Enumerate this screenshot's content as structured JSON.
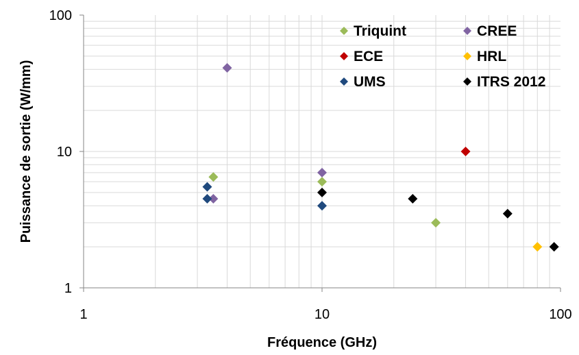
{
  "chart_data": {
    "type": "scatter",
    "title": "",
    "xlabel": "Fréquence (GHz)",
    "ylabel": "Puissance de sortie (W/mm)",
    "xscale": "log",
    "yscale": "log",
    "xlim": [
      1,
      100
    ],
    "ylim": [
      1,
      100
    ],
    "x_ticks": [
      "1",
      "10",
      "100"
    ],
    "y_ticks": [
      "1",
      "10",
      "100"
    ],
    "grid": true,
    "legend_position": "top-right",
    "series": [
      {
        "name": "Triquint",
        "color": "#9BBB59",
        "points": [
          {
            "x": 3.5,
            "y": 6.5
          },
          {
            "x": 10,
            "y": 6
          },
          {
            "x": 30,
            "y": 3
          }
        ]
      },
      {
        "name": "CREE",
        "color": "#8064A2",
        "points": [
          {
            "x": 4,
            "y": 41
          },
          {
            "x": 3.5,
            "y": 4.5
          },
          {
            "x": 10,
            "y": 7
          }
        ]
      },
      {
        "name": "ECE",
        "color": "#C00000",
        "points": [
          {
            "x": 40,
            "y": 10
          }
        ]
      },
      {
        "name": "HRL",
        "color": "#FFC000",
        "points": [
          {
            "x": 80,
            "y": 2
          }
        ]
      },
      {
        "name": "UMS",
        "color": "#1F497D",
        "points": [
          {
            "x": 3.3,
            "y": 5.5
          },
          {
            "x": 3.3,
            "y": 4.5
          },
          {
            "x": 10,
            "y": 4
          }
        ]
      },
      {
        "name": "ITRS 2012",
        "color": "#000000",
        "points": [
          {
            "x": 10,
            "y": 5
          },
          {
            "x": 24,
            "y": 4.5
          },
          {
            "x": 60,
            "y": 3.5
          },
          {
            "x": 94,
            "y": 2
          }
        ]
      }
    ]
  }
}
